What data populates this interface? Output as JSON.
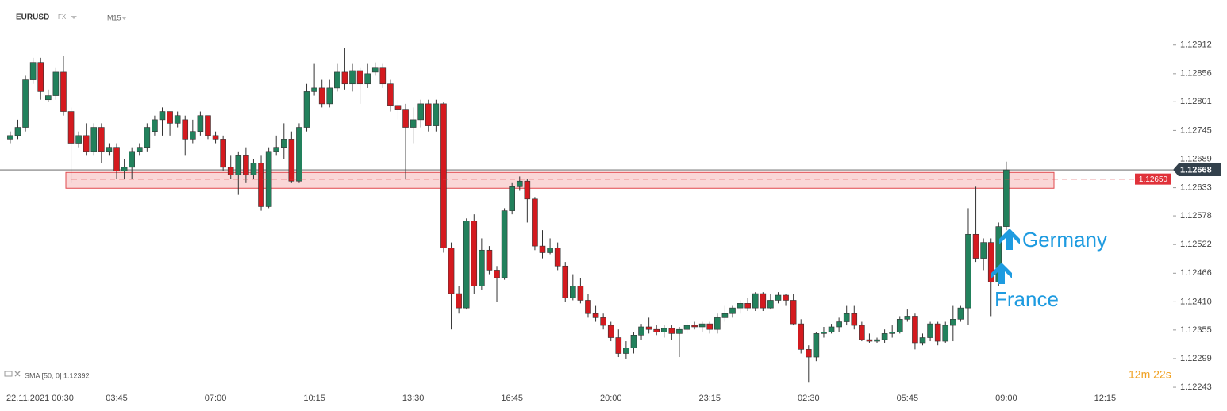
{
  "header": {
    "symbol": "EURUSD",
    "market": "FX",
    "timeframe": "M15"
  },
  "chart_data": {
    "type": "candlestick",
    "categories": [
      null,
      "22.11.2021 00:30",
      null,
      null,
      null,
      null,
      null,
      null,
      null,
      null,
      null,
      null,
      null,
      null,
      "03:45",
      null,
      null,
      null,
      null,
      null,
      null,
      null,
      null,
      null,
      null,
      null,
      null,
      "07:00",
      null,
      null,
      null,
      null,
      null,
      null,
      null,
      null,
      null,
      null,
      null,
      null,
      "10:15",
      null,
      null,
      null,
      null,
      null,
      null,
      null,
      null,
      null,
      null,
      null,
      null,
      "13:30",
      null,
      null,
      null,
      null,
      null,
      null,
      null,
      null,
      null,
      null,
      null,
      null,
      "16:45",
      null,
      null,
      null,
      null,
      null,
      null,
      null,
      null,
      null,
      null,
      null,
      null,
      "20:00",
      null,
      null,
      null,
      null,
      null,
      null,
      null,
      null,
      null,
      null,
      null,
      null,
      "23:15",
      null,
      null,
      null,
      null,
      null,
      null,
      null,
      null,
      null,
      null,
      null,
      null,
      "02:30",
      null,
      null,
      null,
      null,
      null,
      null,
      null,
      null,
      null,
      null,
      null,
      null,
      "05:45",
      null,
      null,
      null,
      null,
      null,
      null,
      null,
      null,
      null,
      null,
      null,
      null,
      "09:00",
      null,
      null,
      null,
      null,
      null,
      null,
      null,
      null,
      null,
      null,
      null,
      null,
      "12:15"
    ],
    "ohlc": [
      [
        1.12728,
        1.12743,
        1.1272,
        1.12735
      ],
      [
        1.12735,
        1.12766,
        1.12728,
        1.12751
      ],
      [
        1.12751,
        1.12852,
        1.12743,
        1.12844
      ],
      [
        1.12844,
        1.12887,
        1.12836,
        1.12878
      ],
      [
        1.12878,
        1.12887,
        1.12805,
        1.12821
      ],
      [
        1.12805,
        1.12825,
        1.128,
        1.12813
      ],
      [
        1.12813,
        1.12867,
        1.12805,
        1.12859
      ],
      [
        1.12859,
        1.1289,
        1.12774,
        1.12782
      ],
      [
        1.12782,
        1.1279,
        1.12642,
        1.1272
      ],
      [
        1.1272,
        1.12743,
        1.12712,
        1.12735
      ],
      [
        1.12735,
        1.12759,
        1.12697,
        1.12704
      ],
      [
        1.12704,
        1.12759,
        1.12697,
        1.12751
      ],
      [
        1.12751,
        1.12759,
        1.12681,
        1.12704
      ],
      [
        1.12704,
        1.1272,
        1.12697,
        1.12712
      ],
      [
        1.12712,
        1.1272,
        1.1265,
        1.12666
      ],
      [
        1.12666,
        1.12689,
        1.1265,
        1.12673
      ],
      [
        1.12673,
        1.12712,
        1.1265,
        1.12704
      ],
      [
        1.12704,
        1.1272,
        1.12697,
        1.12712
      ],
      [
        1.12712,
        1.12759,
        1.12704,
        1.12751
      ],
      [
        1.12743,
        1.12774,
        1.12735,
        1.12766
      ],
      [
        1.12766,
        1.1279,
        1.12735,
        1.12782
      ],
      [
        1.12782,
        1.12782,
        1.12735,
        1.12759
      ],
      [
        1.12759,
        1.12782,
        1.12751,
        1.12774
      ],
      [
        1.12766,
        1.12774,
        1.12697,
        1.12728
      ],
      [
        1.12728,
        1.12766,
        1.1272,
        1.12743
      ],
      [
        1.12743,
        1.12782,
        1.12735,
        1.12774
      ],
      [
        1.12774,
        1.12774,
        1.12728,
        1.12735
      ],
      [
        1.12735,
        1.12743,
        1.1272,
        1.12728
      ],
      [
        1.12728,
        1.12735,
        1.12666,
        1.12673
      ],
      [
        1.12673,
        1.12697,
        1.1265,
        1.12658
      ],
      [
        1.12658,
        1.12704,
        1.12619,
        1.12697
      ],
      [
        1.12697,
        1.12712,
        1.12642,
        1.12658
      ],
      [
        1.12658,
        1.12689,
        1.1265,
        1.12681
      ],
      [
        1.12681,
        1.12697,
        1.12588,
        1.12596
      ],
      [
        1.12596,
        1.12712,
        1.12593,
        1.12704
      ],
      [
        1.12704,
        1.12735,
        1.12697,
        1.12712
      ],
      [
        1.12712,
        1.12759,
        1.12689,
        1.12728
      ],
      [
        1.12728,
        1.12743,
        1.12642,
        1.12646
      ],
      [
        1.12646,
        1.12759,
        1.12642,
        1.12751
      ],
      [
        1.12751,
        1.12836,
        1.12743,
        1.12821
      ],
      [
        1.12821,
        1.12875,
        1.12813,
        1.12828
      ],
      [
        1.12828,
        1.12844,
        1.1279,
        1.12797
      ],
      [
        1.12797,
        1.12844,
        1.1279,
        1.12828
      ],
      [
        1.12828,
        1.12875,
        1.12821,
        1.12859
      ],
      [
        1.12859,
        1.12906,
        1.12825,
        1.12836
      ],
      [
        1.12836,
        1.12875,
        1.12821,
        1.12862
      ],
      [
        1.12862,
        1.12867,
        1.12797,
        1.12836
      ],
      [
        1.12836,
        1.12875,
        1.12828,
        1.12856
      ],
      [
        1.12859,
        1.12878,
        1.12852,
        1.12867
      ],
      [
        1.12867,
        1.12875,
        1.12828,
        1.12836
      ],
      [
        1.12836,
        1.12844,
        1.12782,
        1.12794
      ],
      [
        1.12794,
        1.12805,
        1.12766,
        1.12785
      ],
      [
        1.12785,
        1.12797,
        1.1265,
        1.12751
      ],
      [
        1.12751,
        1.1279,
        1.1272,
        1.12766
      ],
      [
        1.12766,
        1.12805,
        1.12751,
        1.12797
      ],
      [
        1.12797,
        1.12805,
        1.12743,
        1.12754
      ],
      [
        1.12754,
        1.12805,
        1.12743,
        1.12797
      ],
      [
        1.12797,
        1.128,
        1.12506,
        1.12515
      ],
      [
        1.12515,
        1.12526,
        1.12356,
        1.12426
      ],
      [
        1.12426,
        1.12441,
        1.12387,
        1.12398
      ],
      [
        1.12398,
        1.12573,
        1.12395,
        1.12568
      ],
      [
        1.12568,
        1.12581,
        1.12426,
        1.12441
      ],
      [
        1.12441,
        1.12534,
        1.12433,
        1.12511
      ],
      [
        1.12511,
        1.12519,
        1.12464,
        1.12472
      ],
      [
        1.12472,
        1.1248,
        1.1241,
        1.12457
      ],
      [
        1.12457,
        1.12593,
        1.12453,
        1.12588
      ],
      [
        1.12588,
        1.12642,
        1.12581,
        1.12635
      ],
      [
        1.12635,
        1.12655,
        1.12627,
        1.12646
      ],
      [
        1.12646,
        1.1265,
        1.12565,
        1.12611
      ],
      [
        1.12611,
        1.12615,
        1.12511,
        1.12519
      ],
      [
        1.12519,
        1.1255,
        1.12495,
        1.12506
      ],
      [
        1.12506,
        1.12534,
        1.12503,
        1.12515
      ],
      [
        1.12515,
        1.12526,
        1.12472,
        1.1248
      ],
      [
        1.1248,
        1.12488,
        1.1241,
        1.12418
      ],
      [
        1.12418,
        1.12464,
        1.12413,
        1.12441
      ],
      [
        1.12441,
        1.12457,
        1.12407,
        1.12413
      ],
      [
        1.12413,
        1.12426,
        1.12379,
        1.12387
      ],
      [
        1.12387,
        1.12402,
        1.12371,
        1.12379
      ],
      [
        1.12379,
        1.12387,
        1.12356,
        1.12364
      ],
      [
        1.12364,
        1.12371,
        1.12333,
        1.1234
      ],
      [
        1.1234,
        1.12356,
        1.12302,
        1.12309
      ],
      [
        1.12309,
        1.12333,
        1.12299,
        1.1232
      ],
      [
        1.1232,
        1.12351,
        1.12309,
        1.12345
      ],
      [
        1.12345,
        1.12367,
        1.12336,
        1.12361
      ],
      [
        1.12361,
        1.12379,
        1.12348,
        1.12356
      ],
      [
        1.12356,
        1.12364,
        1.12345,
        1.12351
      ],
      [
        1.12351,
        1.12364,
        1.1234,
        1.12358
      ],
      [
        1.12358,
        1.12364,
        1.12336,
        1.12348
      ],
      [
        1.12348,
        1.12361,
        1.12302,
        1.12356
      ],
      [
        1.12356,
        1.12371,
        1.12348,
        1.12364
      ],
      [
        1.12364,
        1.12371,
        1.12356,
        1.12361
      ],
      [
        1.12361,
        1.12371,
        1.12351,
        1.12367
      ],
      [
        1.12367,
        1.12371,
        1.12348,
        1.12356
      ],
      [
        1.12356,
        1.12387,
        1.12348,
        1.12379
      ],
      [
        1.12379,
        1.12402,
        1.12371,
        1.12387
      ],
      [
        1.12387,
        1.12402,
        1.12379,
        1.12398
      ],
      [
        1.12398,
        1.12413,
        1.12387,
        1.12407
      ],
      [
        1.12407,
        1.12418,
        1.12392,
        1.12398
      ],
      [
        1.12398,
        1.12429,
        1.12392,
        1.12426
      ],
      [
        1.12426,
        1.12429,
        1.12392,
        1.12398
      ],
      [
        1.12398,
        1.12426,
        1.12395,
        1.12413
      ],
      [
        1.12413,
        1.12429,
        1.12407,
        1.12423
      ],
      [
        1.12423,
        1.12426,
        1.12402,
        1.12413
      ],
      [
        1.12413,
        1.12426,
        1.12364,
        1.12367
      ],
      [
        1.12367,
        1.12376,
        1.12309,
        1.12317
      ],
      [
        1.12317,
        1.12325,
        1.12252,
        1.12302
      ],
      [
        1.12302,
        1.12351,
        1.12294,
        1.12348
      ],
      [
        1.12348,
        1.12361,
        1.1234,
        1.12351
      ],
      [
        1.12351,
        1.12367,
        1.12348,
        1.12361
      ],
      [
        1.12361,
        1.12379,
        1.12351,
        1.12371
      ],
      [
        1.12371,
        1.12402,
        1.12364,
        1.12387
      ],
      [
        1.12387,
        1.12402,
        1.12356,
        1.12364
      ],
      [
        1.12364,
        1.12371,
        1.12333,
        1.12336
      ],
      [
        1.12336,
        1.12348,
        1.1233,
        1.12333
      ],
      [
        1.12333,
        1.1234,
        1.1233,
        1.12336
      ],
      [
        1.12336,
        1.12356,
        1.1233,
        1.12348
      ],
      [
        1.12348,
        1.12364,
        1.1234,
        1.12351
      ],
      [
        1.12351,
        1.12382,
        1.12348,
        1.12376
      ],
      [
        1.12376,
        1.12395,
        1.12371,
        1.12382
      ],
      [
        1.12382,
        1.12387,
        1.12317,
        1.1233
      ],
      [
        1.1233,
        1.12348,
        1.12325,
        1.1234
      ],
      [
        1.1234,
        1.12371,
        1.12333,
        1.12367
      ],
      [
        1.12367,
        1.12371,
        1.12325,
        1.12333
      ],
      [
        1.12333,
        1.12371,
        1.1233,
        1.12364
      ],
      [
        1.12364,
        1.12402,
        1.12333,
        1.12376
      ],
      [
        1.12376,
        1.12402,
        1.12371,
        1.12398
      ],
      [
        1.12398,
        1.12593,
        1.12364,
        1.12542
      ],
      [
        1.12542,
        1.12635,
        1.12488,
        1.12495
      ],
      [
        1.12495,
        1.12534,
        1.12472,
        1.12526
      ],
      [
        1.12526,
        1.12534,
        1.12382,
        1.12449
      ],
      [
        1.12449,
        1.12565,
        1.12441,
        1.12557
      ],
      [
        1.12557,
        1.12684,
        1.1255,
        1.12668
      ],
      null,
      null,
      null,
      null,
      null,
      null,
      null,
      null,
      null,
      null,
      null,
      null,
      null
    ],
    "colors": {
      "up": "#22815c",
      "down": "#d41a1f"
    },
    "ylim": [
      1.1224,
      1.13
    ],
    "yticks": [
      1.12912,
      1.12856,
      1.12801,
      1.12745,
      1.12689,
      1.12633,
      1.12578,
      1.12522,
      1.12466,
      {
        "value": 1.1241,
        "label": "1.12410"
      },
      1.12355,
      1.12299,
      1.12243
    ],
    "current_price": 1.12668,
    "zone": {
      "from": 1.12632,
      "to": 1.12663,
      "level": {
        "value": 1.1265,
        "label": "1.12650"
      }
    },
    "indicator": "SMA [50, 0] 1.12392",
    "timer": "12m 22s",
    "annotations": [
      "Germany",
      "France"
    ]
  }
}
